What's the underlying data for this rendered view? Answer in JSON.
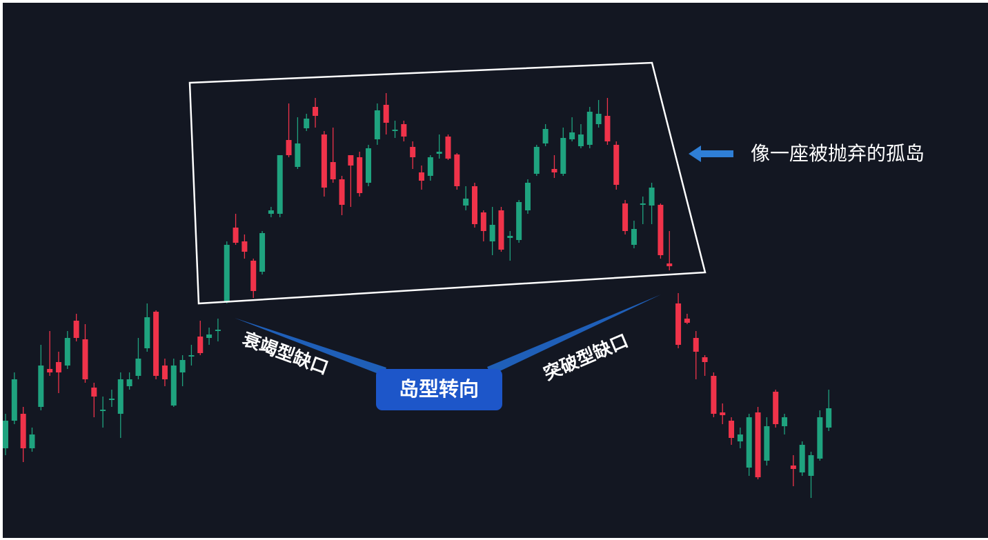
{
  "chart_data": {
    "type": "candlestick",
    "up_color": "#1fa37f",
    "down_color": "#f0334a",
    "ylim": [
      0,
      783
    ],
    "open": [
      133,
      173,
      183,
      133,
      193,
      248,
      258,
      253,
      318,
      291,
      221,
      187,
      203,
      183,
      223,
      238,
      278,
      331,
      253,
      195,
      243,
      266,
      295,
      293,
      303,
      345,
      453,
      433,
      405,
      389,
      473,
      473,
      580,
      541,
      597,
      628,
      588,
      548,
      523,
      558,
      555,
      518,
      581,
      631,
      593,
      603,
      570,
      533,
      528,
      560,
      585,
      559,
      485,
      513,
      475,
      433,
      478,
      438,
      435,
      478,
      531,
      575,
      538,
      531,
      581,
      571,
      573,
      603,
      615,
      573,
      488,
      428,
      486,
      485,
      486,
      401,
      343,
      321,
      293,
      265,
      238,
      185,
      173,
      143,
      105,
      185,
      115,
      215,
      165,
      108,
      98,
      93,
      118,
      163
    ],
    "high": [
      183,
      243,
      193,
      163,
      283,
      303,
      273,
      303,
      328,
      313,
      228,
      208,
      218,
      243,
      243,
      293,
      343,
      333,
      263,
      263,
      268,
      283,
      318,
      308,
      321,
      433,
      473,
      443,
      408,
      448,
      483,
      558,
      633,
      613,
      618,
      641,
      593,
      598,
      528,
      558,
      563,
      573,
      633,
      648,
      608,
      608,
      578,
      543,
      558,
      588,
      588,
      561,
      513,
      518,
      478,
      483,
      483,
      448,
      493,
      523,
      573,
      603,
      558,
      598,
      613,
      603,
      628,
      638,
      641,
      578,
      493,
      463,
      498,
      518,
      488,
      448,
      358,
      328,
      303,
      268,
      243,
      198,
      178,
      163,
      183,
      193,
      178,
      218,
      183,
      123,
      143,
      128,
      188,
      218
    ],
    "low": [
      123,
      168,
      113,
      128,
      188,
      238,
      213,
      248,
      288,
      228,
      178,
      163,
      193,
      148,
      218,
      233,
      273,
      233,
      223,
      193,
      223,
      253,
      268,
      283,
      288,
      343,
      428,
      408,
      351,
      385,
      468,
      468,
      555,
      538,
      593,
      598,
      498,
      518,
      471,
      483,
      498,
      513,
      573,
      588,
      583,
      578,
      538,
      508,
      521,
      553,
      551,
      508,
      478,
      453,
      433,
      413,
      418,
      405,
      431,
      473,
      528,
      571,
      525,
      528,
      578,
      568,
      568,
      598,
      573,
      508,
      443,
      423,
      458,
      458,
      408,
      391,
      278,
      313,
      233,
      238,
      178,
      168,
      138,
      133,
      93,
      88,
      108,
      163,
      153,
      78,
      93,
      61,
      115,
      158
    ],
    "close": [
      173,
      233,
      133,
      153,
      253,
      243,
      243,
      293,
      293,
      233,
      208,
      189,
      205,
      233,
      233,
      263,
      323,
      238,
      233,
      253,
      261,
      268,
      271,
      298,
      305,
      428,
      431,
      418,
      361,
      445,
      478,
      558,
      558,
      575,
      611,
      615,
      511,
      523,
      486,
      543,
      503,
      568,
      623,
      605,
      595,
      585,
      555,
      521,
      555,
      563,
      553,
      513,
      495,
      458,
      448,
      457,
      421,
      441,
      490,
      518,
      570,
      596,
      533,
      583,
      591,
      588,
      621,
      618,
      578,
      515,
      448,
      451,
      488,
      511,
      413,
      397,
      283,
      315,
      273,
      258,
      183,
      181,
      148,
      153,
      178,
      91,
      165,
      168,
      178,
      103,
      138,
      123,
      178,
      191
    ],
    "annotations": {
      "island_note": "像一座被抛弃的孤岛",
      "exhaustion_gap": "衰竭型缺口",
      "breakaway_gap": "突破型缺口",
      "island_reversal": "岛型转向"
    }
  }
}
